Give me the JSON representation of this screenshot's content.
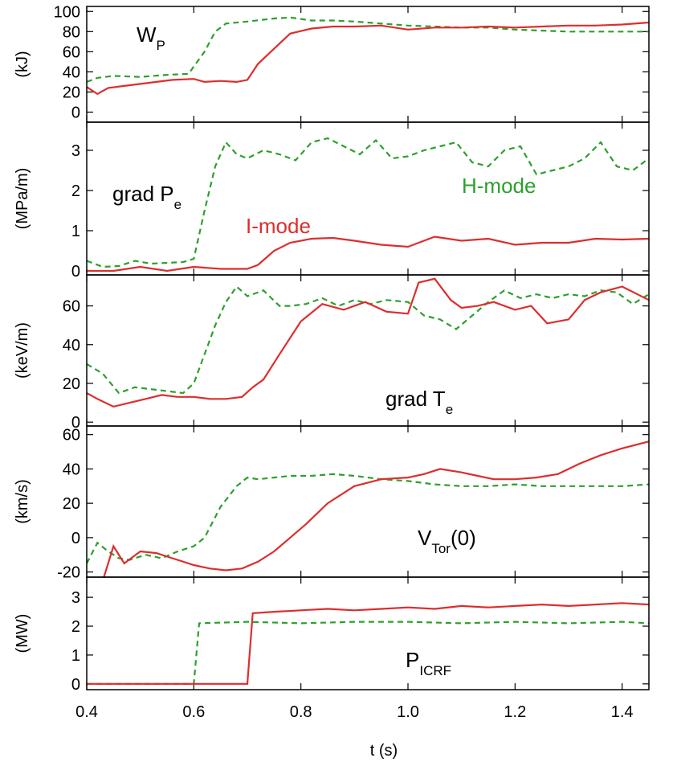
{
  "chart_data": {
    "type": "line",
    "x_axis": {
      "label": "t (s)",
      "range": [
        0.4,
        1.45
      ],
      "ticks": [
        0.4,
        0.6,
        0.8,
        1.0,
        1.2,
        1.4
      ],
      "tick_labels": [
        "0.4",
        "0.6",
        "0.8",
        "1.0",
        "1.2",
        "1.4"
      ]
    },
    "colors": {
      "I-mode": "#dc2e2e",
      "H-mode": "#2ca02c"
    },
    "panels": [
      {
        "ylabel": "(kJ)",
        "ylim": [
          -10,
          105
        ],
        "yticks": [
          0,
          20,
          40,
          60,
          80,
          100
        ],
        "label_main": "W",
        "label_sub": "P",
        "series": [
          {
            "name": "H-mode",
            "style": "dashed",
            "x": [
              0.4,
              0.42,
              0.45,
              0.5,
              0.55,
              0.59,
              0.62,
              0.64,
              0.66,
              0.7,
              0.75,
              0.78,
              0.82,
              0.86,
              0.9,
              0.95,
              1.0,
              1.05,
              1.1,
              1.15,
              1.2,
              1.25,
              1.3,
              1.35,
              1.4,
              1.45
            ],
            "y": [
              30,
              34,
              36,
              35,
              37,
              38,
              60,
              80,
              88,
              90,
              93,
              94,
              91,
              91,
              90,
              88,
              86,
              85,
              84,
              84,
              82,
              81,
              80,
              80,
              80,
              80
            ]
          },
          {
            "name": "I-mode",
            "style": "solid",
            "x": [
              0.4,
              0.42,
              0.44,
              0.47,
              0.5,
              0.53,
              0.56,
              0.6,
              0.62,
              0.65,
              0.68,
              0.7,
              0.72,
              0.75,
              0.78,
              0.82,
              0.86,
              0.9,
              0.95,
              1.0,
              1.05,
              1.1,
              1.15,
              1.2,
              1.25,
              1.3,
              1.35,
              1.4,
              1.45
            ],
            "y": [
              25,
              18,
              24,
              26,
              28,
              30,
              32,
              33,
              30,
              31,
              30,
              32,
              48,
              63,
              78,
              83,
              85,
              85,
              86,
              82,
              84,
              84,
              85,
              84,
              85,
              86,
              86,
              87,
              89
            ]
          }
        ]
      },
      {
        "ylabel": "(MPa/m)",
        "ylim": [
          -0.1,
          3.7
        ],
        "yticks": [
          0,
          1,
          2,
          3
        ],
        "label_main": "grad P",
        "label_sub": "e",
        "series_labels": [
          "H-mode",
          "I-mode"
        ],
        "series": [
          {
            "name": "H-mode",
            "style": "dashed",
            "x": [
              0.4,
              0.43,
              0.46,
              0.49,
              0.52,
              0.55,
              0.58,
              0.6,
              0.62,
              0.64,
              0.66,
              0.68,
              0.7,
              0.73,
              0.76,
              0.79,
              0.82,
              0.85,
              0.88,
              0.91,
              0.94,
              0.97,
              1.0,
              1.03,
              1.06,
              1.09,
              1.12,
              1.15,
              1.18,
              1.21,
              1.24,
              1.27,
              1.3,
              1.33,
              1.36,
              1.39,
              1.42,
              1.45
            ],
            "y": [
              0.25,
              0.1,
              0.12,
              0.25,
              0.18,
              0.2,
              0.22,
              0.3,
              1.5,
              2.6,
              3.2,
              2.9,
              2.8,
              3.0,
              2.9,
              2.75,
              3.2,
              3.3,
              3.1,
              2.9,
              3.25,
              2.8,
              2.85,
              3.0,
              3.1,
              3.2,
              2.7,
              2.6,
              3.0,
              3.1,
              2.4,
              2.5,
              2.6,
              2.8,
              3.2,
              2.6,
              2.5,
              2.8
            ]
          },
          {
            "name": "I-mode",
            "style": "solid",
            "x": [
              0.4,
              0.45,
              0.5,
              0.55,
              0.6,
              0.65,
              0.7,
              0.72,
              0.75,
              0.78,
              0.82,
              0.86,
              0.9,
              0.95,
              1.0,
              1.05,
              1.1,
              1.15,
              1.2,
              1.25,
              1.3,
              1.35,
              1.4,
              1.45
            ],
            "y": [
              0.0,
              0.0,
              0.1,
              0.0,
              0.1,
              0.05,
              0.05,
              0.15,
              0.5,
              0.7,
              0.8,
              0.82,
              0.75,
              0.65,
              0.6,
              0.85,
              0.75,
              0.8,
              0.65,
              0.7,
              0.7,
              0.8,
              0.78,
              0.8
            ]
          }
        ]
      },
      {
        "ylabel": "(keV/m)",
        "ylim": [
          -2,
          76
        ],
        "yticks": [
          0,
          20,
          40,
          60
        ],
        "label_main": "grad T",
        "label_sub": "e",
        "series": [
          {
            "name": "H-mode",
            "style": "dashed",
            "x": [
              0.4,
              0.43,
              0.46,
              0.49,
              0.52,
              0.55,
              0.58,
              0.6,
              0.62,
              0.64,
              0.66,
              0.68,
              0.7,
              0.73,
              0.76,
              0.78,
              0.81,
              0.84,
              0.87,
              0.9,
              0.93,
              0.96,
              1.0,
              1.03,
              1.06,
              1.09,
              1.12,
              1.15,
              1.18,
              1.21,
              1.24,
              1.27,
              1.3,
              1.33,
              1.36,
              1.39,
              1.42,
              1.45
            ],
            "y": [
              30,
              25,
              15,
              18,
              17,
              16,
              15,
              20,
              35,
              50,
              62,
              70,
              65,
              68,
              60,
              60,
              61,
              64,
              60,
              63,
              61,
              63,
              62,
              55,
              53,
              48,
              55,
              62,
              68,
              64,
              66,
              64,
              66,
              65,
              68,
              67,
              61,
              66
            ]
          },
          {
            "name": "I-mode",
            "style": "solid",
            "x": [
              0.4,
              0.42,
              0.45,
              0.48,
              0.51,
              0.54,
              0.57,
              0.6,
              0.63,
              0.66,
              0.69,
              0.71,
              0.73,
              0.76,
              0.8,
              0.84,
              0.88,
              0.92,
              0.96,
              1.0,
              1.02,
              1.05,
              1.08,
              1.1,
              1.13,
              1.16,
              1.2,
              1.23,
              1.26,
              1.3,
              1.33,
              1.36,
              1.4,
              1.45
            ],
            "y": [
              15,
              12,
              8,
              10,
              12,
              14,
              13,
              13,
              12,
              12,
              13,
              18,
              22,
              35,
              52,
              61,
              58,
              62,
              57,
              56,
              72,
              74,
              63,
              59,
              60,
              62,
              58,
              60,
              51,
              53,
              63,
              67,
              70,
              63
            ]
          }
        ]
      },
      {
        "ylabel": "(km/s)",
        "ylim": [
          -23,
          65
        ],
        "yticks": [
          -20,
          0,
          20,
          40,
          60
        ],
        "label_main": "V",
        "label_sub": "Tor",
        "label_tail": "(0)",
        "series": [
          {
            "name": "H-mode",
            "style": "dashed",
            "x": [
              0.4,
              0.42,
              0.44,
              0.46,
              0.48,
              0.51,
              0.54,
              0.57,
              0.6,
              0.62,
              0.65,
              0.68,
              0.7,
              0.72,
              0.75,
              0.78,
              0.82,
              0.86,
              0.9,
              0.95,
              1.0,
              1.05,
              1.1,
              1.15,
              1.2,
              1.25,
              1.3,
              1.35,
              1.4,
              1.45
            ],
            "y": [
              -15,
              -3,
              -8,
              -12,
              -13,
              -10,
              -12,
              -8,
              -5,
              0,
              18,
              30,
              35,
              34,
              35,
              36,
              36,
              37,
              36,
              34,
              33,
              31,
              30,
              30,
              31,
              30,
              30,
              30,
              30,
              31
            ]
          },
          {
            "name": "I-mode",
            "style": "solid",
            "x": [
              0.4,
              0.43,
              0.45,
              0.47,
              0.5,
              0.53,
              0.56,
              0.6,
              0.63,
              0.66,
              0.69,
              0.72,
              0.75,
              0.78,
              0.81,
              0.85,
              0.9,
              0.95,
              1.0,
              1.03,
              1.06,
              1.1,
              1.13,
              1.16,
              1.2,
              1.24,
              1.28,
              1.32,
              1.36,
              1.4,
              1.45
            ],
            "y": [
              -25,
              -25,
              -5,
              -15,
              -8,
              -9,
              -12,
              -16,
              -18,
              -19,
              -18,
              -14,
              -8,
              0,
              8,
              20,
              30,
              34,
              35,
              37,
              40,
              38,
              36,
              34,
              34,
              35,
              37,
              43,
              48,
              52,
              56
            ]
          }
        ]
      },
      {
        "ylabel": "(MW)",
        "ylim": [
          -0.2,
          3.7
        ],
        "yticks": [
          0,
          1,
          2,
          3
        ],
        "label_main": "P",
        "label_sub": "ICRF",
        "series": [
          {
            "name": "H-mode",
            "style": "dashed",
            "x": [
              0.4,
              0.6,
              0.61,
              0.7,
              0.8,
              0.9,
              1.0,
              1.1,
              1.2,
              1.3,
              1.4,
              1.45
            ],
            "y": [
              0,
              0,
              2.1,
              2.15,
              2.1,
              2.15,
              2.15,
              2.1,
              2.15,
              2.1,
              2.15,
              2.1
            ]
          },
          {
            "name": "I-mode",
            "style": "solid",
            "x": [
              0.4,
              0.7,
              0.71,
              0.75,
              0.8,
              0.85,
              0.9,
              0.95,
              1.0,
              1.05,
              1.1,
              1.15,
              1.2,
              1.25,
              1.3,
              1.35,
              1.4,
              1.45
            ],
            "y": [
              0,
              0,
              2.45,
              2.5,
              2.55,
              2.6,
              2.55,
              2.6,
              2.65,
              2.6,
              2.7,
              2.65,
              2.7,
              2.75,
              2.7,
              2.75,
              2.8,
              2.75
            ]
          }
        ]
      }
    ]
  }
}
